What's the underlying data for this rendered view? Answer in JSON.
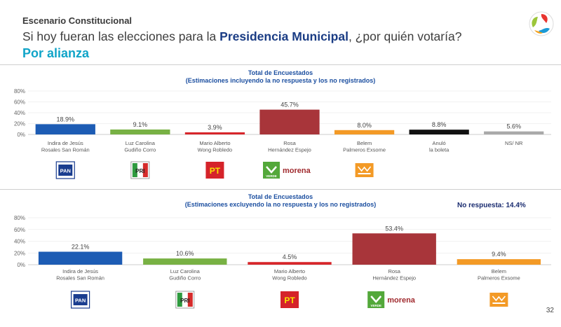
{
  "header": {
    "kicker": "Escenario Constitucional",
    "question_pre": "Si hoy fueran las elecciones para la ",
    "question_bold": "Presidencia Municipal",
    "question_post": ", ¿por quién votaría?",
    "subtitle": "Por alianza"
  },
  "page_number": "32",
  "colors": {
    "accent_blue": "#1a3c84",
    "accent_cyan": "#10a4c8"
  },
  "chart_data": [
    {
      "type": "bar",
      "title": "Total de Encuestados",
      "subtitle": "(Estimaciones incluyendo la no respuesta y los no registrados)",
      "ylim": [
        0,
        80
      ],
      "yticks": [
        "80%",
        "60%",
        "40%",
        "20%",
        "0%"
      ],
      "categories": [
        [
          "Indira de Jesús",
          "Rosales San Román"
        ],
        [
          "Luz Carolina",
          "Gudiño Corro"
        ],
        [
          "Mario Alberto",
          "Wong Robledo"
        ],
        [
          "Rosa",
          "Hernández Espejo"
        ],
        [
          "Belem",
          "Palmeros Exsome"
        ],
        [
          "Anuló",
          "la boleta"
        ],
        [
          "NS/ NR"
        ]
      ],
      "values": [
        18.9,
        9.1,
        3.9,
        45.7,
        8.0,
        8.8,
        5.6
      ],
      "value_labels": [
        "18.9%",
        "9.1%",
        "3.9%",
        "45.7%",
        "8.0%",
        "8.8%",
        "5.6%"
      ],
      "colors": [
        "#1d5cb4",
        "#78b144",
        "#d7262b",
        "#a8353a",
        "#f39a26",
        "#111111",
        "#a9a9a9"
      ],
      "party_logos": [
        "PAN",
        "PRI",
        "PT",
        "morena",
        "MC",
        "",
        ""
      ]
    },
    {
      "type": "bar",
      "title": "Total de Encuestados",
      "subtitle": "(Estimaciones excluyendo la no respuesta y los no registrados)",
      "note": "No respuesta: 14.4%",
      "ylim": [
        0,
        80
      ],
      "yticks": [
        "80%",
        "60%",
        "40%",
        "20%",
        "0%"
      ],
      "categories": [
        [
          "Indira de Jesús",
          "Rosales San Román"
        ],
        [
          "Luz Carolina",
          "Gudiño Corro"
        ],
        [
          "Mario Alberto",
          "Wong Robledo"
        ],
        [
          "Rosa",
          "Hernández Espejo"
        ],
        [
          "Belem",
          "Palmeros Exsome"
        ]
      ],
      "values": [
        22.1,
        10.6,
        4.5,
        53.4,
        9.4
      ],
      "value_labels": [
        "22.1%",
        "10.6%",
        "4.5%",
        "53.4%",
        "9.4%"
      ],
      "colors": [
        "#1d5cb4",
        "#78b144",
        "#d7262b",
        "#a8353a",
        "#f39a26"
      ],
      "party_logos": [
        "PAN",
        "PRI",
        "PT",
        "morena",
        "MC"
      ]
    }
  ]
}
